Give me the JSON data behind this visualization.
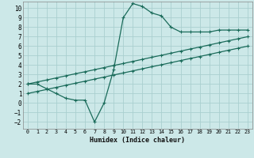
{
  "xlabel": "Humidex (Indice chaleur)",
  "bg_color": "#cce8e8",
  "grid_color": "#aacfcf",
  "line_color": "#1a6b5a",
  "xlim": [
    -0.5,
    23.5
  ],
  "ylim": [
    -2.7,
    10.7
  ],
  "xticks": [
    0,
    1,
    2,
    3,
    4,
    5,
    6,
    7,
    8,
    9,
    10,
    11,
    12,
    13,
    14,
    15,
    16,
    17,
    18,
    19,
    20,
    21,
    22,
    23
  ],
  "yticks": [
    -2,
    -1,
    0,
    1,
    2,
    3,
    4,
    5,
    6,
    7,
    8,
    9,
    10
  ],
  "series": [
    {
      "x": [
        0,
        1,
        2,
        3,
        4,
        5,
        6,
        7,
        8,
        9,
        10,
        11,
        12,
        13,
        14,
        15,
        16,
        17,
        18,
        19,
        20,
        21,
        22,
        23
      ],
      "y": [
        2.0,
        2.0,
        1.5,
        1.0,
        0.5,
        0.3,
        0.3,
        -2.0,
        0.0,
        3.5,
        9.0,
        10.5,
        10.2,
        9.5,
        9.2,
        8.0,
        7.5,
        7.5,
        7.5,
        7.5,
        7.7,
        7.7,
        7.7,
        7.7
      ]
    },
    {
      "x": [
        0,
        1,
        2,
        3,
        4,
        5,
        6,
        7,
        8,
        9,
        10,
        11,
        12,
        13,
        14,
        15,
        16,
        17,
        18,
        19,
        20,
        21,
        22,
        23
      ],
      "y": [
        2.0,
        2.22,
        2.43,
        2.65,
        2.87,
        3.09,
        3.3,
        3.52,
        3.74,
        3.96,
        4.17,
        4.39,
        4.61,
        4.83,
        5.04,
        5.26,
        5.48,
        5.7,
        5.91,
        6.13,
        6.35,
        6.57,
        6.78,
        7.0
      ]
    },
    {
      "x": [
        0,
        1,
        2,
        3,
        4,
        5,
        6,
        7,
        8,
        9,
        10,
        11,
        12,
        13,
        14,
        15,
        16,
        17,
        18,
        19,
        20,
        21,
        22,
        23
      ],
      "y": [
        1.0,
        1.22,
        1.43,
        1.65,
        1.87,
        2.09,
        2.3,
        2.52,
        2.74,
        2.96,
        3.17,
        3.39,
        3.61,
        3.83,
        4.04,
        4.26,
        4.48,
        4.7,
        4.91,
        5.13,
        5.35,
        5.57,
        5.78,
        6.0
      ]
    }
  ]
}
